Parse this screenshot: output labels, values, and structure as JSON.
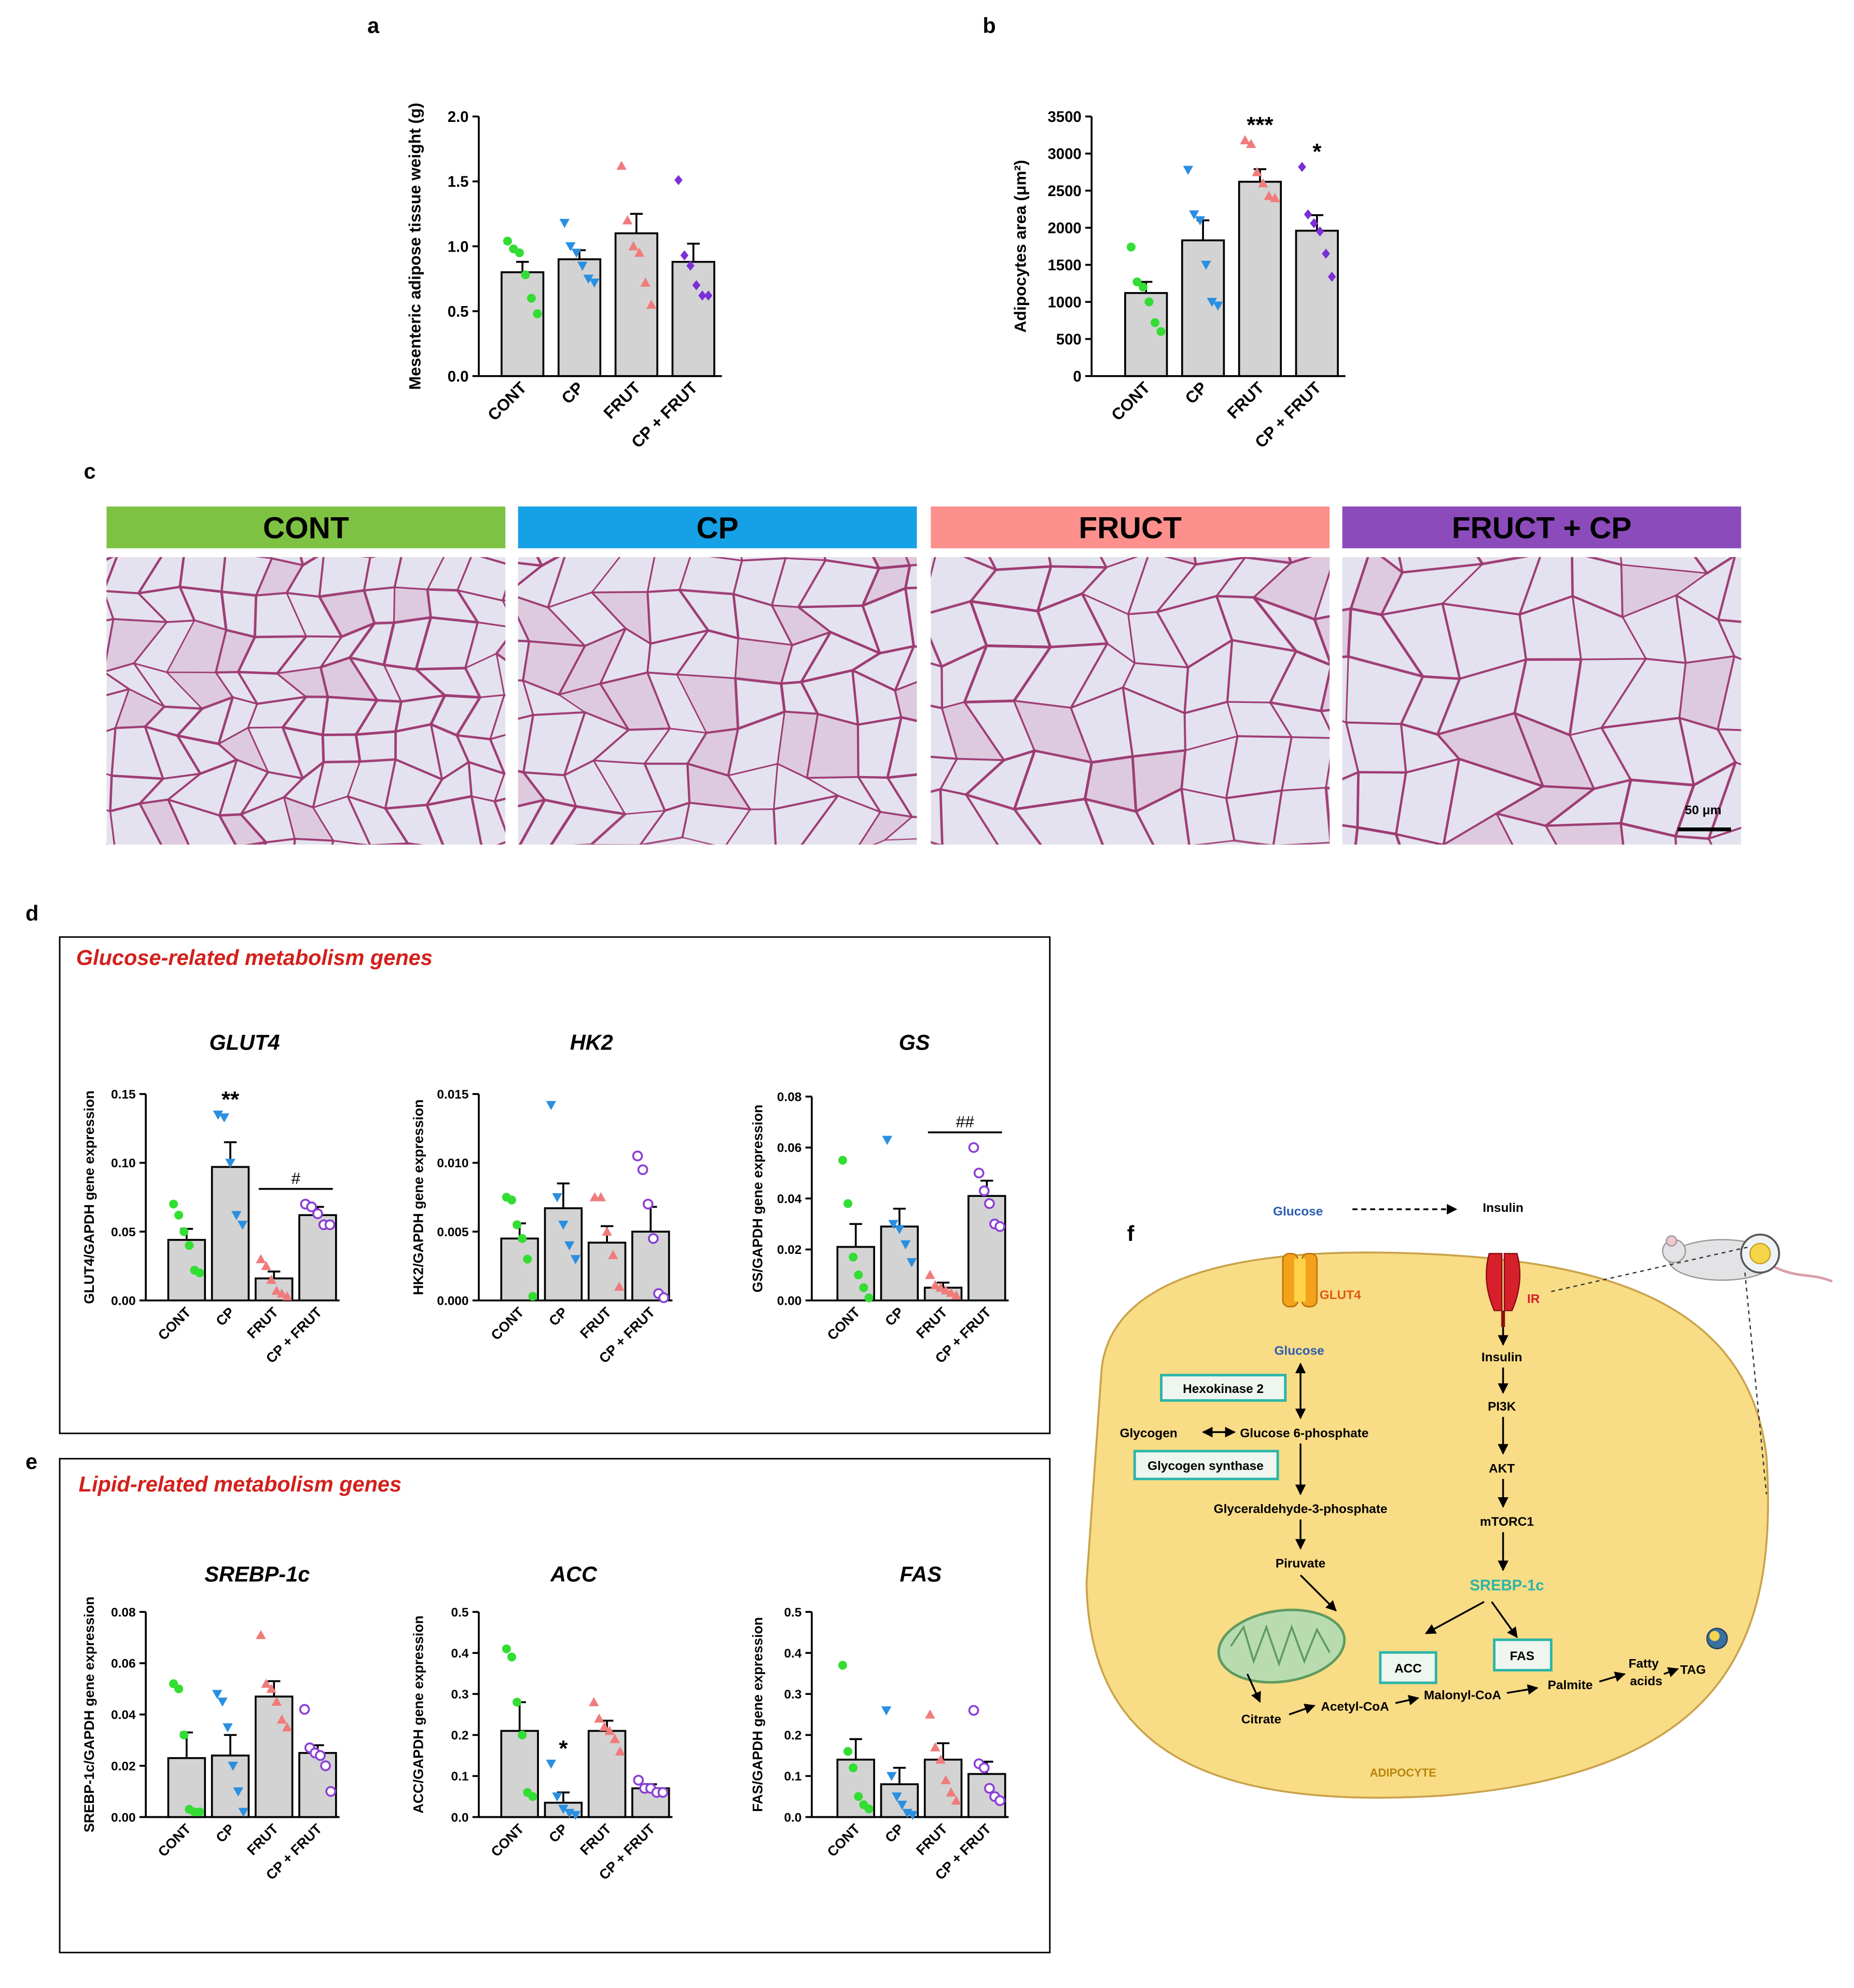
{
  "chart_data": [
    {
      "type": "bar",
      "panel": "a",
      "ylabel": "Mesenteric adipose tissue weight (g)",
      "categories": [
        "CONT",
        "CP",
        "FRUT",
        "CP + FRUT"
      ],
      "values": [
        0.8,
        0.9,
        1.1,
        0.88
      ],
      "errors": [
        0.08,
        0.07,
        0.15,
        0.14
      ],
      "points": [
        [
          1.04,
          0.98,
          0.95,
          0.78,
          0.6,
          0.48
        ],
        [
          1.18,
          1.0,
          0.95,
          0.85,
          0.75,
          0.72
        ],
        [
          1.62,
          1.2,
          1.0,
          0.95,
          0.72,
          0.55
        ],
        [
          1.51,
          0.93,
          0.85,
          0.7,
          0.62,
          0.62
        ]
      ],
      "colors": [
        "#33dd33",
        "#2a8fe0",
        "#f07b7b",
        "#7b2fd6"
      ],
      "markers": [
        "circle",
        "triangle-down",
        "triangle",
        "diamond"
      ],
      "bar_color": "#d3d3d3",
      "ylim": [
        0,
        2
      ],
      "yticks": [
        {
          "value": 0,
          "label": "0.0"
        },
        0.5,
        {
          "value": 1,
          "label": "1.0"
        },
        1.5,
        {
          "value": 2,
          "label": "2.0"
        }
      ]
    },
    {
      "type": "bar",
      "panel": "b",
      "ylabel": "Adipocytes area (μm²)",
      "categories": [
        "CONT",
        "CP",
        "FRUT",
        "CP + FRUT"
      ],
      "values": [
        1120,
        1830,
        2620,
        1960
      ],
      "errors": [
        150,
        270,
        170,
        210
      ],
      "points": [
        [
          1740,
          1270,
          1200,
          1000,
          720,
          600
        ],
        [
          2780,
          2180,
          2100,
          1500,
          1000,
          950
        ],
        [
          3180,
          3130,
          2750,
          2600,
          2430,
          2400
        ],
        [
          2820,
          2180,
          2060,
          1950,
          1650,
          1340
        ]
      ],
      "colors": [
        "#33dd33",
        "#2a8fe0",
        "#f07b7b",
        "#7b2fd6"
      ],
      "markers": [
        "circle",
        "triangle-down",
        "triangle",
        "diamond"
      ],
      "bar_color": "#d3d3d3",
      "annotations": [
        {
          "text": "***",
          "category": "FRUT"
        },
        {
          "text": "*",
          "category": "CP + FRUT"
        }
      ],
      "ylim": [
        0,
        3500
      ],
      "yticks": [
        0,
        500,
        1000,
        1500,
        2000,
        2500,
        3000,
        3500
      ]
    },
    {
      "type": "bar",
      "title": "GLUT4",
      "ylabel": "GLUT4/GAPDH gene expression",
      "categories": [
        "CONT",
        "CP",
        "FRUT",
        "CP + FRUT"
      ],
      "values": [
        0.044,
        0.097,
        0.016,
        0.062
      ],
      "errors": [
        0.008,
        0.018,
        0.005,
        0.006
      ],
      "points": [
        [
          0.07,
          0.062,
          0.05,
          0.04,
          0.022,
          0.02
        ],
        [
          0.135,
          0.133,
          0.1,
          0.062,
          0.055
        ],
        [
          0.03,
          0.025,
          0.015,
          0.007,
          0.005,
          0.003
        ],
        [
          0.07,
          0.068,
          0.063,
          0.055,
          0.055
        ]
      ],
      "colors": [
        "#33dd33",
        "#2a8fe0",
        "#f07b7b",
        "#8a3fd6"
      ],
      "markers": [
        "circle",
        "triangle-down",
        "triangle",
        "open-circle"
      ],
      "bar_color": "#d3d3d3",
      "annotations": [
        {
          "text": "**",
          "category": "CP"
        }
      ],
      "brackets": [
        {
          "text": "#",
          "from": "FRUT",
          "to": "CP + FRUT"
        }
      ],
      "ylim": [
        0,
        0.15
      ],
      "yticks": [
        {
          "value": 0,
          "label": "0.00"
        },
        0.05,
        {
          "value": 0.1,
          "label": "0.10"
        },
        0.15
      ]
    },
    {
      "type": "bar",
      "title": "HK2",
      "ylabel": "HK2/GAPDH gene expression",
      "categories": [
        "CONT",
        "CP",
        "FRUT",
        "CP + FRUT"
      ],
      "values": [
        0.0045,
        0.0067,
        0.0042,
        0.005
      ],
      "errors": [
        0.0011,
        0.0018,
        0.0012,
        0.0018
      ],
      "points": [
        [
          0.0075,
          0.0073,
          0.0055,
          0.0045,
          0.003,
          0.0003
        ],
        [
          0.0142,
          0.0075,
          0.0055,
          0.004,
          0.003
        ],
        [
          0.0075,
          0.0075,
          0.005,
          0.0033,
          0.001
        ],
        [
          0.0105,
          0.0095,
          0.007,
          0.0045,
          0.0005,
          0.0002
        ]
      ],
      "colors": [
        "#33dd33",
        "#2a8fe0",
        "#f07b7b",
        "#8a3fd6"
      ],
      "markers": [
        "circle",
        "triangle-down",
        "triangle",
        "open-circle"
      ],
      "bar_color": "#d3d3d3",
      "ylim": [
        0,
        0.015
      ],
      "yticks": [
        {
          "value": 0,
          "label": "0.000"
        },
        0.005,
        {
          "value": 0.01,
          "label": "0.010"
        },
        0.015
      ]
    },
    {
      "type": "bar",
      "title": "GS",
      "ylabel": "GS/GAPDH gene expression",
      "categories": [
        "CONT",
        "CP",
        "FRUT",
        "CP + FRUT"
      ],
      "values": [
        0.021,
        0.029,
        0.005,
        0.041
      ],
      "errors": [
        0.009,
        0.007,
        0.002,
        0.006
      ],
      "points": [
        [
          0.055,
          0.038,
          0.017,
          0.01,
          0.005,
          0.001
        ],
        [
          0.063,
          0.03,
          0.028,
          0.022,
          0.015
        ],
        [
          0.01,
          0.006,
          0.005,
          0.004,
          0.003,
          0.002
        ],
        [
          0.06,
          0.05,
          0.043,
          0.038,
          0.03,
          0.029
        ]
      ],
      "colors": [
        "#33dd33",
        "#2a8fe0",
        "#f07b7b",
        "#8a3fd6"
      ],
      "markers": [
        "circle",
        "triangle-down",
        "triangle",
        "open-circle"
      ],
      "bar_color": "#d3d3d3",
      "brackets": [
        {
          "text": "##",
          "from": "FRUT",
          "to": "CP + FRUT"
        }
      ],
      "ylim": [
        0,
        0.08
      ],
      "yticks": [
        {
          "value": 0,
          "label": "0.00"
        },
        0.02,
        0.04,
        0.06,
        0.08
      ]
    },
    {
      "type": "bar",
      "title": "SREBP-1c",
      "ylabel": "SREBP-1c/GAPDH gene expression",
      "categories": [
        "CONT",
        "CP",
        "FRUT",
        "CP + FRUT"
      ],
      "values": [
        0.023,
        0.024,
        0.047,
        0.025
      ],
      "errors": [
        0.01,
        0.008,
        0.006,
        0.003
      ],
      "points": [
        [
          0.052,
          0.05,
          0.032,
          0.003,
          0.002,
          0.002
        ],
        [
          0.048,
          0.045,
          0.035,
          0.02,
          0.01,
          0.002
        ],
        [
          0.071,
          0.052,
          0.05,
          0.045,
          0.038,
          0.035
        ],
        [
          0.042,
          0.027,
          0.025,
          0.024,
          0.02,
          0.01
        ]
      ],
      "colors": [
        "#33dd33",
        "#2a8fe0",
        "#f07b7b",
        "#8a3fd6"
      ],
      "markers": [
        "circle",
        "triangle-down",
        "triangle",
        "open-circle"
      ],
      "bar_color": "#d3d3d3",
      "ylim": [
        0,
        0.08
      ],
      "yticks": [
        {
          "value": 0,
          "label": "0.00"
        },
        0.02,
        0.04,
        0.06,
        0.08
      ]
    },
    {
      "type": "bar",
      "title": "ACC",
      "ylabel": "ACC/GAPDH gene expression",
      "categories": [
        "CONT",
        "CP",
        "FRUT",
        "CP + FRUT"
      ],
      "values": [
        0.21,
        0.035,
        0.21,
        0.07
      ],
      "errors": [
        0.07,
        0.025,
        0.025,
        0.01
      ],
      "points": [
        [
          0.41,
          0.39,
          0.28,
          0.2,
          0.06,
          0.05
        ],
        [
          0.13,
          0.05,
          0.02,
          0.01,
          0.005
        ],
        [
          0.28,
          0.24,
          0.22,
          0.21,
          0.19,
          0.16
        ],
        [
          0.09,
          0.07,
          0.07,
          0.06,
          0.06
        ]
      ],
      "colors": [
        "#33dd33",
        "#2a8fe0",
        "#f07b7b",
        "#8a3fd6"
      ],
      "markers": [
        "circle",
        "triangle-down",
        "triangle",
        "open-circle"
      ],
      "bar_color": "#d3d3d3",
      "annotations": [
        {
          "text": "*",
          "category": "CP"
        }
      ],
      "ylim": [
        0,
        0.5
      ],
      "yticks": [
        {
          "value": 0,
          "label": "0.0"
        },
        0.1,
        0.2,
        0.3,
        0.4,
        0.5
      ]
    },
    {
      "type": "bar",
      "title": "FAS",
      "ylabel": "FAS/GAPDH gene expression",
      "categories": [
        "CONT",
        "CP",
        "FRUT",
        "CP + FRUT"
      ],
      "values": [
        0.14,
        0.08,
        0.14,
        0.105
      ],
      "errors": [
        0.05,
        0.04,
        0.04,
        0.03
      ],
      "points": [
        [
          0.37,
          0.16,
          0.12,
          0.05,
          0.03,
          0.02
        ],
        [
          0.26,
          0.1,
          0.05,
          0.03,
          0.01,
          0.005
        ],
        [
          0.25,
          0.17,
          0.14,
          0.09,
          0.06,
          0.04
        ],
        [
          0.26,
          0.13,
          0.12,
          0.07,
          0.05,
          0.04
        ]
      ],
      "colors": [
        "#33dd33",
        "#2a8fe0",
        "#f07b7b",
        "#8a3fd6"
      ],
      "markers": [
        "circle",
        "triangle-down",
        "triangle",
        "open-circle"
      ],
      "bar_color": "#d3d3d3",
      "ylim": [
        0,
        0.5
      ],
      "yticks": [
        {
          "value": 0,
          "label": "0.0"
        },
        0.1,
        0.2,
        0.3,
        0.4,
        0.5
      ]
    }
  ],
  "panels": {
    "c": {
      "label": "c",
      "headers": [
        "CONT",
        "CP",
        "FRUCT",
        "FRUCT + CP"
      ],
      "header_colors": [
        "#7dc242",
        "#16a0e6",
        "#fd8f8c",
        "#8c4bbb"
      ],
      "scale_bar": "50 μm"
    },
    "d": {
      "label": "d",
      "title": "Glucose-related metabolism genes"
    },
    "e": {
      "label": "e",
      "title": "Lipid-related metabolism genes"
    },
    "f": {
      "label": "f",
      "labels": [
        "Glucose",
        "Insulin",
        "GLUT4",
        "IR",
        "Glucose",
        "Insulin",
        "Glycogen",
        "Glucose 6-phosphate",
        "PI3K",
        "AKT",
        "Glyceraldehyde-3-phosphate",
        "mTORC1",
        "Piruvate",
        "SREBP-1c",
        "Fatty",
        "acids",
        "TAG",
        "Palmite",
        "Malonyl-CoA",
        "Acetyl-CoA",
        "Citrate",
        "ADIPOCYTE"
      ],
      "boxes": [
        "Hexokinase 2",
        "Glycogen synthase",
        "ACC",
        "FAS"
      ]
    }
  }
}
